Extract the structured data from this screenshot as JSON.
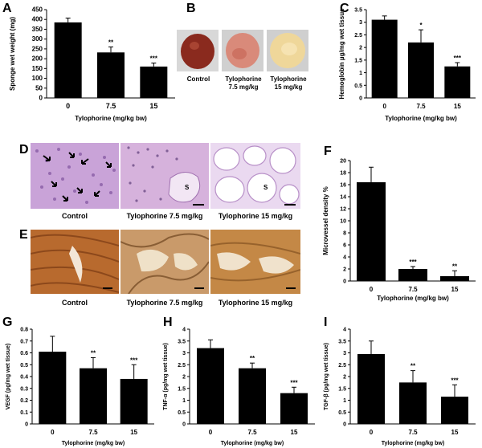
{
  "panel_letters": {
    "A": "A",
    "B": "B",
    "C": "C",
    "D": "D",
    "E": "E",
    "F": "F",
    "G": "G",
    "H": "H",
    "I": "I"
  },
  "panel_b": {
    "captions": [
      "Control",
      "Tylophorine\n7.5 mg/kg",
      "Tylophorine\n15 mg/kg"
    ],
    "colors": [
      "#8a2a1e",
      "#d98a7a",
      "#efd79a"
    ]
  },
  "panel_d": {
    "captions": [
      "Control",
      "Tylophorine 7.5 mg/kg",
      "Tylophorine 15 mg/kg"
    ],
    "s_label": "S",
    "colors": [
      "#c9a3d8",
      "#d6b2dc",
      "#ead9f0"
    ]
  },
  "panel_e": {
    "captions": [
      "Control",
      "Tylophorine 7.5 mg/kg",
      "Tylophorine 15 mg/kg"
    ],
    "colors": [
      "#b86a2e",
      "#c99a6a",
      "#c48846"
    ]
  },
  "chart_data": [
    {
      "id": "A",
      "type": "bar",
      "categories": [
        "0",
        "7.5",
        "15"
      ],
      "values": [
        385,
        232,
        160
      ],
      "errors": [
        22,
        28,
        18
      ],
      "significance": [
        "",
        "**",
        "***"
      ],
      "ylabel": "Sponge wet weight (mg)",
      "xlabel": "Tylophorine (mg/kg bw)",
      "ylim": [
        0,
        450
      ],
      "yticks": [
        "0",
        "50",
        "100",
        "150",
        "200",
        "250",
        "300",
        "350",
        "400",
        "450"
      ],
      "ytick_values": [
        0,
        50,
        100,
        150,
        200,
        250,
        300,
        350,
        400,
        450
      ],
      "bar_color": "#000000"
    },
    {
      "id": "C",
      "type": "bar",
      "categories": [
        "0",
        "7.5",
        "15"
      ],
      "values": [
        3.1,
        2.2,
        1.25
      ],
      "errors": [
        0.15,
        0.5,
        0.15
      ],
      "significance": [
        "",
        "*",
        "***"
      ],
      "ylabel": "Hemoglobin µg/mg wet tissue",
      "xlabel": "Tylophorine  (mg/kg  bw)",
      "ylim": [
        0,
        3.5
      ],
      "yticks": [
        "0",
        "0.5",
        "1",
        "1.5",
        "2",
        "2.5",
        "3",
        "3.5"
      ],
      "ytick_values": [
        0,
        0.5,
        1,
        1.5,
        2,
        2.5,
        3,
        3.5
      ],
      "bar_color": "#000000"
    },
    {
      "id": "F",
      "type": "bar",
      "categories": [
        "0",
        "7.5",
        "15"
      ],
      "values": [
        16.4,
        2.0,
        0.8
      ],
      "errors": [
        2.5,
        0.4,
        0.9
      ],
      "significance": [
        "",
        "***",
        "**"
      ],
      "ylabel": "Microvessel density %",
      "xlabel": "Tylophorine (mg/kg bw)",
      "ylim": [
        0,
        20
      ],
      "yticks": [
        "0",
        "2",
        "4",
        "6",
        "8",
        "10",
        "12",
        "14",
        "16",
        "18",
        "20"
      ],
      "ytick_values": [
        0,
        2,
        4,
        6,
        8,
        10,
        12,
        14,
        16,
        18,
        20
      ],
      "bar_color": "#000000"
    },
    {
      "id": "G",
      "type": "bar",
      "categories": [
        "0",
        "7.5",
        "15"
      ],
      "values": [
        0.61,
        0.47,
        0.38
      ],
      "errors": [
        0.13,
        0.09,
        0.12
      ],
      "significance": [
        "",
        "**",
        "***"
      ],
      "ylabel": "VEGF (pg/mg wet tissue)",
      "xlabel": "Tylophorine (mg/kg bw)",
      "ylim": [
        0,
        0.8
      ],
      "yticks": [
        "0",
        "0.1",
        "0.2",
        "0.3",
        "0.4",
        "0.5",
        "0.6",
        "0.7",
        "0.8"
      ],
      "ytick_values": [
        0,
        0.1,
        0.2,
        0.3,
        0.4,
        0.5,
        0.6,
        0.7,
        0.8
      ],
      "bar_color": "#000000"
    },
    {
      "id": "H",
      "type": "bar",
      "categories": [
        "0",
        "7.5",
        "15"
      ],
      "values": [
        3.2,
        2.35,
        1.3
      ],
      "errors": [
        0.35,
        0.22,
        0.25
      ],
      "significance": [
        "",
        "**",
        "***"
      ],
      "ylabel": "TNF-α (pg/mg wet tissue)",
      "xlabel": "Tylophorine (mg/kg bw)",
      "ylim": [
        0,
        4
      ],
      "yticks": [
        "0",
        "0.5",
        "1",
        "1.5",
        "2",
        "2.5",
        "3",
        "3.5",
        "4"
      ],
      "ytick_values": [
        0,
        0.5,
        1,
        1.5,
        2,
        2.5,
        3,
        3.5,
        4
      ],
      "bar_color": "#000000"
    },
    {
      "id": "I",
      "type": "bar",
      "categories": [
        "0",
        "7.5",
        "15"
      ],
      "values": [
        2.95,
        1.75,
        1.15
      ],
      "errors": [
        0.55,
        0.5,
        0.5
      ],
      "significance": [
        "",
        "**",
        "***"
      ],
      "ylabel": "TGF-β (pg/mg wet tissue)",
      "xlabel": "Tylophorine (mg/kg bw)",
      "ylim": [
        0,
        4
      ],
      "yticks": [
        "0",
        "0.5",
        "1",
        "1.5",
        "2",
        "2.5",
        "3",
        "3.5",
        "4"
      ],
      "ytick_values": [
        0,
        0.5,
        1,
        1.5,
        2,
        2.5,
        3,
        3.5,
        4
      ],
      "bar_color": "#000000"
    }
  ]
}
